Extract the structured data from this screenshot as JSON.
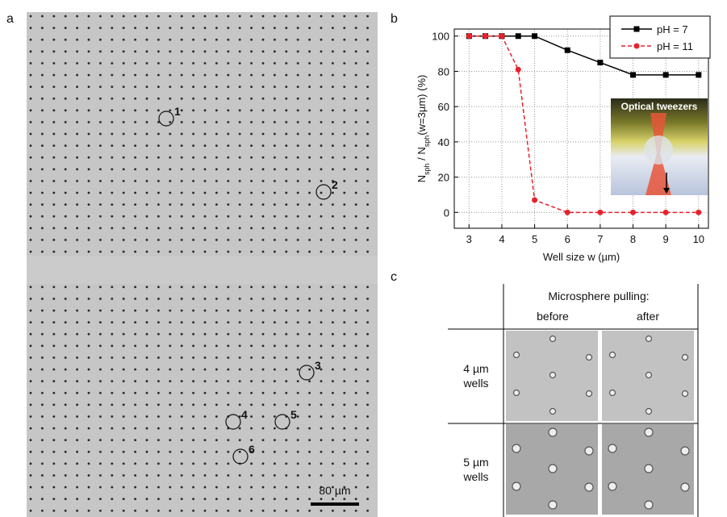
{
  "panel_a": {
    "label": "a",
    "markers": [
      "1",
      "2",
      "3",
      "4",
      "5",
      "6"
    ],
    "scale_bar": "80 µm"
  },
  "panel_b": {
    "label": "b",
    "inset": "Optical tweezers"
  },
  "chart_data": {
    "type": "line",
    "xlabel": "Well size w (µm)",
    "ylabel": [
      "N",
      "sph",
      " / N",
      "sph",
      "(w=3µm) (%)"
    ],
    "x": [
      3,
      3.5,
      4,
      4.5,
      5,
      6,
      7,
      8,
      9,
      10
    ],
    "series": [
      {
        "name": "pH = 7",
        "color": "#000000",
        "marker": "square",
        "dash": false,
        "values": [
          100,
          100,
          100,
          100,
          100,
          92,
          85,
          78,
          78,
          78
        ]
      },
      {
        "name": "pH = 11",
        "color": "#e8212b",
        "marker": "circle",
        "dash": true,
        "values": [
          100,
          100,
          100,
          81,
          7,
          0,
          0,
          0,
          0,
          0
        ]
      }
    ],
    "xlim": [
      2.55,
      10.3
    ],
    "ylim": [
      -9,
      104
    ],
    "xticks": [
      3,
      4,
      5,
      6,
      7,
      8,
      9,
      10
    ],
    "yticks": [
      0,
      20,
      40,
      60,
      80,
      100
    ],
    "grid": true,
    "legend": "top-right"
  },
  "panel_c": {
    "label": "c",
    "header": "Microsphere pulling:",
    "columns": [
      "before",
      "after"
    ],
    "rows": [
      [
        "4 µm",
        "wells"
      ],
      [
        "5 µm",
        "wells"
      ]
    ]
  }
}
